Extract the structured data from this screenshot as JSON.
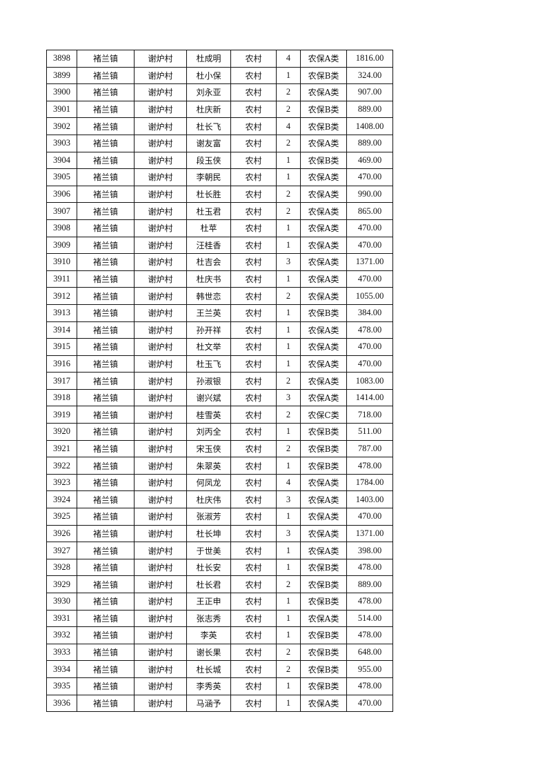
{
  "table": {
    "rows": [
      [
        "3898",
        "褚兰镇",
        "谢炉村",
        "杜成明",
        "农村",
        "4",
        "农保A类",
        "1816.00"
      ],
      [
        "3899",
        "褚兰镇",
        "谢炉村",
        "杜小保",
        "农村",
        "1",
        "农保B类",
        "324.00"
      ],
      [
        "3900",
        "褚兰镇",
        "谢炉村",
        "刘永亚",
        "农村",
        "2",
        "农保A类",
        "907.00"
      ],
      [
        "3901",
        "褚兰镇",
        "谢炉村",
        "杜庆新",
        "农村",
        "2",
        "农保B类",
        "889.00"
      ],
      [
        "3902",
        "褚兰镇",
        "谢炉村",
        "杜长飞",
        "农村",
        "4",
        "农保B类",
        "1408.00"
      ],
      [
        "3903",
        "褚兰镇",
        "谢炉村",
        "谢友富",
        "农村",
        "2",
        "农保A类",
        "889.00"
      ],
      [
        "3904",
        "褚兰镇",
        "谢炉村",
        "段玉侠",
        "农村",
        "1",
        "农保B类",
        "469.00"
      ],
      [
        "3905",
        "褚兰镇",
        "谢炉村",
        "李朝民",
        "农村",
        "1",
        "农保A类",
        "470.00"
      ],
      [
        "3906",
        "褚兰镇",
        "谢炉村",
        "杜长胜",
        "农村",
        "2",
        "农保A类",
        "990.00"
      ],
      [
        "3907",
        "褚兰镇",
        "谢炉村",
        "杜玉君",
        "农村",
        "2",
        "农保A类",
        "865.00"
      ],
      [
        "3908",
        "褚兰镇",
        "谢炉村",
        "杜苹",
        "农村",
        "1",
        "农保A类",
        "470.00"
      ],
      [
        "3909",
        "褚兰镇",
        "谢炉村",
        "汪桂香",
        "农村",
        "1",
        "农保A类",
        "470.00"
      ],
      [
        "3910",
        "褚兰镇",
        "谢炉村",
        "杜吉会",
        "农村",
        "3",
        "农保A类",
        "1371.00"
      ],
      [
        "3911",
        "褚兰镇",
        "谢炉村",
        "杜庆书",
        "农村",
        "1",
        "农保A类",
        "470.00"
      ],
      [
        "3912",
        "褚兰镇",
        "谢炉村",
        "韩世恋",
        "农村",
        "2",
        "农保A类",
        "1055.00"
      ],
      [
        "3913",
        "褚兰镇",
        "谢炉村",
        "王兰英",
        "农村",
        "1",
        "农保B类",
        "384.00"
      ],
      [
        "3914",
        "褚兰镇",
        "谢炉村",
        "孙开祥",
        "农村",
        "1",
        "农保A类",
        "478.00"
      ],
      [
        "3915",
        "褚兰镇",
        "谢炉村",
        "杜文举",
        "农村",
        "1",
        "农保A类",
        "470.00"
      ],
      [
        "3916",
        "褚兰镇",
        "谢炉村",
        "杜玉飞",
        "农村",
        "1",
        "农保A类",
        "470.00"
      ],
      [
        "3917",
        "褚兰镇",
        "谢炉村",
        "孙淑银",
        "农村",
        "2",
        "农保A类",
        "1083.00"
      ],
      [
        "3918",
        "褚兰镇",
        "谢炉村",
        "谢兴斌",
        "农村",
        "3",
        "农保A类",
        "1414.00"
      ],
      [
        "3919",
        "褚兰镇",
        "谢炉村",
        "桂雪英",
        "农村",
        "2",
        "农保C类",
        "718.00"
      ],
      [
        "3920",
        "褚兰镇",
        "谢炉村",
        "刘丙全",
        "农村",
        "1",
        "农保B类",
        "511.00"
      ],
      [
        "3921",
        "褚兰镇",
        "谢炉村",
        "宋玉侠",
        "农村",
        "2",
        "农保B类",
        "787.00"
      ],
      [
        "3922",
        "褚兰镇",
        "谢炉村",
        "朱翠英",
        "农村",
        "1",
        "农保B类",
        "478.00"
      ],
      [
        "3923",
        "褚兰镇",
        "谢炉村",
        "何凤龙",
        "农村",
        "4",
        "农保A类",
        "1784.00"
      ],
      [
        "3924",
        "褚兰镇",
        "谢炉村",
        "杜庆伟",
        "农村",
        "3",
        "农保A类",
        "1403.00"
      ],
      [
        "3925",
        "褚兰镇",
        "谢炉村",
        "张淑芳",
        "农村",
        "1",
        "农保A类",
        "470.00"
      ],
      [
        "3926",
        "褚兰镇",
        "谢炉村",
        "杜长坤",
        "农村",
        "3",
        "农保A类",
        "1371.00"
      ],
      [
        "3927",
        "褚兰镇",
        "谢炉村",
        "于世美",
        "农村",
        "1",
        "农保A类",
        "398.00"
      ],
      [
        "3928",
        "褚兰镇",
        "谢炉村",
        "杜长安",
        "农村",
        "1",
        "农保B类",
        "478.00"
      ],
      [
        "3929",
        "褚兰镇",
        "谢炉村",
        "杜长君",
        "农村",
        "2",
        "农保B类",
        "889.00"
      ],
      [
        "3930",
        "褚兰镇",
        "谢炉村",
        "王正申",
        "农村",
        "1",
        "农保B类",
        "478.00"
      ],
      [
        "3931",
        "褚兰镇",
        "谢炉村",
        "张志秀",
        "农村",
        "1",
        "农保A类",
        "514.00"
      ],
      [
        "3932",
        "褚兰镇",
        "谢炉村",
        "李英",
        "农村",
        "1",
        "农保B类",
        "478.00"
      ],
      [
        "3933",
        "褚兰镇",
        "谢炉村",
        "谢长果",
        "农村",
        "2",
        "农保B类",
        "648.00"
      ],
      [
        "3934",
        "褚兰镇",
        "谢炉村",
        "杜长城",
        "农村",
        "2",
        "农保B类",
        "955.00"
      ],
      [
        "3935",
        "褚兰镇",
        "谢炉村",
        "李秀英",
        "农村",
        "1",
        "农保B类",
        "478.00"
      ],
      [
        "3936",
        "褚兰镇",
        "谢炉村",
        "马涵予",
        "农村",
        "1",
        "农保A类",
        "470.00"
      ]
    ]
  }
}
